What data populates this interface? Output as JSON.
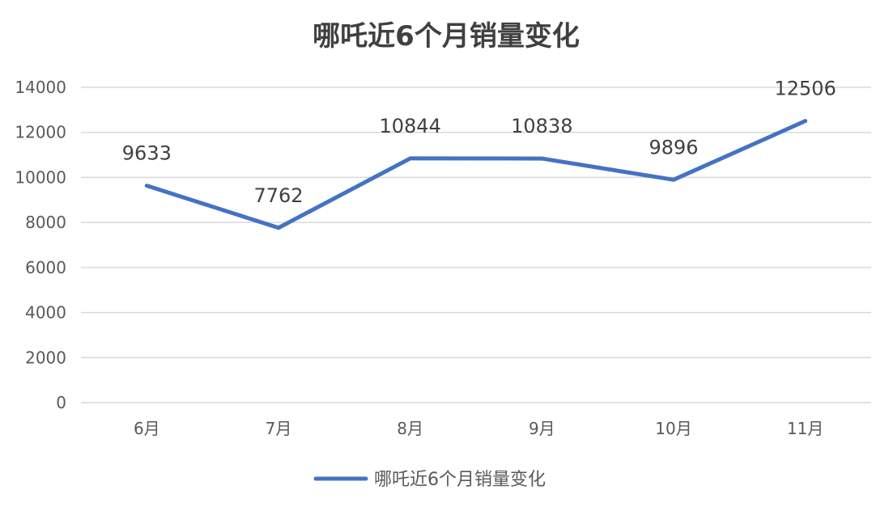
{
  "chart_data": {
    "type": "line",
    "title": "哪吒近6个月销量变化",
    "categories": [
      "6月",
      "7月",
      "8月",
      "9月",
      "10月",
      "11月"
    ],
    "series": [
      {
        "name": "哪吒近6个月销量变化",
        "values": [
          9633,
          7762,
          10844,
          10838,
          9896,
          12506
        ],
        "color": "#4472c4"
      }
    ],
    "data_labels": [
      "9633",
      "7762",
      "10844",
      "10838",
      "9896",
      "12506"
    ],
    "ylim": [
      0,
      14000
    ],
    "yticks": [
      "0",
      "2000",
      "4000",
      "6000",
      "8000",
      "10000",
      "12000",
      "14000"
    ],
    "grid": true,
    "legend_position": "bottom"
  }
}
